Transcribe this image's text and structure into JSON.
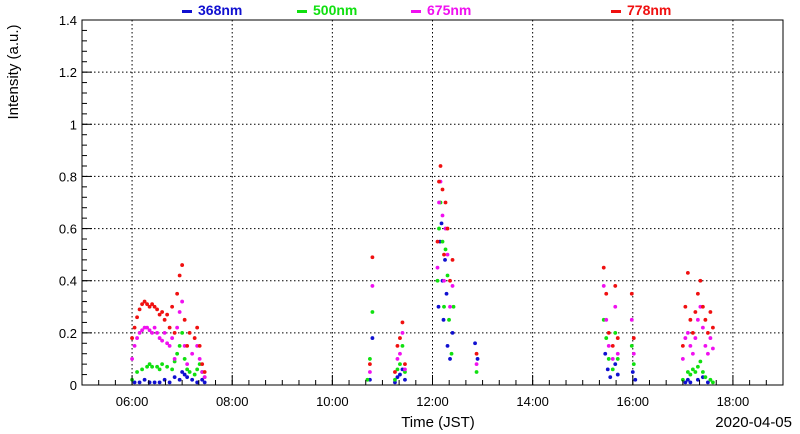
{
  "chart_data": {
    "type": "scatter",
    "title": "",
    "xlabel": "Time (JST)",
    "ylabel": "Intensity (a.u.)",
    "date_label": "2020-04-05",
    "xlim": [
      5.0,
      19.0
    ],
    "ylim": [
      0,
      1.4
    ],
    "x_ticks": [
      6,
      8,
      10,
      12,
      14,
      16,
      18
    ],
    "x_tick_labels": [
      "06:00",
      "08:00",
      "10:00",
      "12:00",
      "14:00",
      "16:00",
      "18:00"
    ],
    "y_ticks": [
      0,
      0.2,
      0.4,
      0.6,
      0.8,
      1,
      1.2,
      1.4
    ],
    "y_tick_labels": [
      "0",
      "0.2",
      "0.4",
      "0.6",
      "0.8",
      "1",
      "1.2",
      "1.4"
    ],
    "grid": true,
    "legend_position": "top",
    "series": [
      {
        "name": "368nm",
        "color": "#1010d0",
        "points": [
          [
            6.05,
            0.01
          ],
          [
            6.15,
            0.01
          ],
          [
            6.25,
            0.02
          ],
          [
            6.35,
            0.01
          ],
          [
            6.45,
            0.01
          ],
          [
            6.55,
            0.01
          ],
          [
            6.65,
            0.02
          ],
          [
            6.75,
            0.01
          ],
          [
            6.85,
            0.03
          ],
          [
            6.95,
            0.02
          ],
          [
            7.0,
            0.05
          ],
          [
            7.05,
            0.04
          ],
          [
            7.1,
            0.03
          ],
          [
            7.2,
            0.02
          ],
          [
            7.3,
            0.01
          ],
          [
            7.4,
            0.02
          ],
          [
            7.45,
            0.01
          ],
          [
            10.75,
            0.02
          ],
          [
            10.8,
            0.18
          ],
          [
            11.25,
            0.01
          ],
          [
            11.3,
            0.03
          ],
          [
            11.35,
            0.04
          ],
          [
            11.4,
            0.06
          ],
          [
            11.45,
            0.02
          ],
          [
            12.12,
            0.3
          ],
          [
            12.15,
            0.55
          ],
          [
            12.18,
            0.62
          ],
          [
            12.2,
            0.4
          ],
          [
            12.22,
            0.25
          ],
          [
            12.25,
            0.48
          ],
          [
            12.28,
            0.35
          ],
          [
            12.3,
            0.15
          ],
          [
            12.35,
            0.1
          ],
          [
            12.4,
            0.2
          ],
          [
            12.85,
            0.16
          ],
          [
            12.9,
            0.1
          ],
          [
            15.45,
            0.12
          ],
          [
            15.5,
            0.06
          ],
          [
            15.55,
            0.03
          ],
          [
            15.65,
            0.08
          ],
          [
            15.7,
            0.04
          ],
          [
            16.0,
            0.05
          ],
          [
            16.05,
            0.02
          ],
          [
            17.05,
            0.01
          ],
          [
            17.1,
            0.02
          ],
          [
            17.15,
            0.01
          ],
          [
            17.3,
            0.02
          ],
          [
            17.4,
            0.03
          ],
          [
            17.5,
            0.01
          ]
        ]
      },
      {
        "name": "500nm",
        "color": "#10e010",
        "points": [
          [
            6.0,
            0.02
          ],
          [
            6.1,
            0.05
          ],
          [
            6.2,
            0.06
          ],
          [
            6.3,
            0.07
          ],
          [
            6.35,
            0.08
          ],
          [
            6.4,
            0.07
          ],
          [
            6.5,
            0.07
          ],
          [
            6.55,
            0.06
          ],
          [
            6.6,
            0.08
          ],
          [
            6.7,
            0.07
          ],
          [
            6.8,
            0.06
          ],
          [
            6.85,
            0.09
          ],
          [
            6.9,
            0.12
          ],
          [
            6.95,
            0.15
          ],
          [
            7.0,
            0.2
          ],
          [
            7.05,
            0.1
          ],
          [
            7.1,
            0.06
          ],
          [
            7.15,
            0.05
          ],
          [
            7.25,
            0.04
          ],
          [
            7.3,
            0.06
          ],
          [
            7.35,
            0.08
          ],
          [
            7.4,
            0.05
          ],
          [
            7.45,
            0.03
          ],
          [
            10.7,
            0.02
          ],
          [
            10.75,
            0.1
          ],
          [
            10.8,
            0.28
          ],
          [
            11.25,
            0.02
          ],
          [
            11.3,
            0.06
          ],
          [
            11.35,
            0.08
          ],
          [
            11.4,
            0.15
          ],
          [
            11.45,
            0.05
          ],
          [
            12.1,
            0.4
          ],
          [
            12.13,
            0.6
          ],
          [
            12.16,
            0.7
          ],
          [
            12.2,
            0.55
          ],
          [
            12.23,
            0.3
          ],
          [
            12.26,
            0.52
          ],
          [
            12.3,
            0.42
          ],
          [
            12.33,
            0.25
          ],
          [
            12.38,
            0.12
          ],
          [
            12.42,
            0.3
          ],
          [
            12.88,
            0.05
          ],
          [
            15.42,
            0.25
          ],
          [
            15.47,
            0.18
          ],
          [
            15.52,
            0.1
          ],
          [
            15.6,
            0.06
          ],
          [
            15.65,
            0.2
          ],
          [
            15.7,
            0.1
          ],
          [
            15.98,
            0.15
          ],
          [
            16.02,
            0.08
          ],
          [
            17.0,
            0.02
          ],
          [
            17.1,
            0.05
          ],
          [
            17.15,
            0.04
          ],
          [
            17.2,
            0.06
          ],
          [
            17.25,
            0.05
          ],
          [
            17.3,
            0.07
          ],
          [
            17.35,
            0.09
          ],
          [
            17.4,
            0.05
          ],
          [
            17.45,
            0.03
          ],
          [
            17.55,
            0.02
          ],
          [
            17.6,
            0.01
          ]
        ]
      },
      {
        "name": "675nm",
        "color": "#f010f0",
        "points": [
          [
            6.0,
            0.1
          ],
          [
            6.05,
            0.15
          ],
          [
            6.1,
            0.18
          ],
          [
            6.15,
            0.2
          ],
          [
            6.2,
            0.21
          ],
          [
            6.25,
            0.22
          ],
          [
            6.3,
            0.22
          ],
          [
            6.35,
            0.21
          ],
          [
            6.4,
            0.2
          ],
          [
            6.45,
            0.22
          ],
          [
            6.5,
            0.2
          ],
          [
            6.55,
            0.18
          ],
          [
            6.6,
            0.17
          ],
          [
            6.65,
            0.2
          ],
          [
            6.7,
            0.16
          ],
          [
            6.75,
            0.15
          ],
          [
            6.8,
            0.18
          ],
          [
            6.85,
            0.1
          ],
          [
            6.9,
            0.22
          ],
          [
            6.95,
            0.28
          ],
          [
            7.0,
            0.32
          ],
          [
            7.05,
            0.15
          ],
          [
            7.1,
            0.08
          ],
          [
            7.2,
            0.12
          ],
          [
            7.3,
            0.15
          ],
          [
            7.35,
            0.1
          ],
          [
            7.4,
            0.05
          ],
          [
            7.45,
            0.03
          ],
          [
            10.75,
            0.05
          ],
          [
            10.8,
            0.38
          ],
          [
            11.3,
            0.1
          ],
          [
            11.35,
            0.12
          ],
          [
            11.4,
            0.2
          ],
          [
            11.45,
            0.06
          ],
          [
            12.1,
            0.45
          ],
          [
            12.13,
            0.7
          ],
          [
            12.16,
            0.78
          ],
          [
            12.2,
            0.65
          ],
          [
            12.23,
            0.4
          ],
          [
            12.26,
            0.6
          ],
          [
            12.3,
            0.5
          ],
          [
            12.35,
            0.3
          ],
          [
            12.4,
            0.38
          ],
          [
            12.88,
            0.08
          ],
          [
            15.42,
            0.38
          ],
          [
            15.47,
            0.25
          ],
          [
            15.52,
            0.15
          ],
          [
            15.6,
            0.1
          ],
          [
            15.65,
            0.3
          ],
          [
            15.7,
            0.12
          ],
          [
            15.98,
            0.25
          ],
          [
            16.02,
            0.12
          ],
          [
            17.0,
            0.1
          ],
          [
            17.05,
            0.18
          ],
          [
            17.1,
            0.2
          ],
          [
            17.15,
            0.15
          ],
          [
            17.2,
            0.12
          ],
          [
            17.25,
            0.18
          ],
          [
            17.3,
            0.25
          ],
          [
            17.35,
            0.3
          ],
          [
            17.4,
            0.22
          ],
          [
            17.45,
            0.15
          ],
          [
            17.5,
            0.12
          ],
          [
            17.55,
            0.18
          ],
          [
            17.6,
            0.14
          ]
        ]
      },
      {
        "name": "778nm",
        "color": "#f01010",
        "points": [
          [
            6.0,
            0.18
          ],
          [
            6.05,
            0.22
          ],
          [
            6.1,
            0.26
          ],
          [
            6.15,
            0.29
          ],
          [
            6.2,
            0.31
          ],
          [
            6.25,
            0.32
          ],
          [
            6.3,
            0.31
          ],
          [
            6.35,
            0.3
          ],
          [
            6.4,
            0.31
          ],
          [
            6.45,
            0.3
          ],
          [
            6.5,
            0.29
          ],
          [
            6.55,
            0.27
          ],
          [
            6.6,
            0.28
          ],
          [
            6.65,
            0.25
          ],
          [
            6.7,
            0.27
          ],
          [
            6.75,
            0.22
          ],
          [
            6.8,
            0.3
          ],
          [
            6.85,
            0.2
          ],
          [
            6.9,
            0.35
          ],
          [
            6.95,
            0.42
          ],
          [
            7.0,
            0.46
          ],
          [
            7.05,
            0.25
          ],
          [
            7.1,
            0.15
          ],
          [
            7.15,
            0.2
          ],
          [
            7.25,
            0.18
          ],
          [
            7.3,
            0.22
          ],
          [
            7.35,
            0.15
          ],
          [
            7.4,
            0.08
          ],
          [
            7.45,
            0.05
          ],
          [
            10.75,
            0.08
          ],
          [
            10.8,
            0.49
          ],
          [
            11.25,
            0.05
          ],
          [
            11.3,
            0.15
          ],
          [
            11.35,
            0.18
          ],
          [
            11.4,
            0.24
          ],
          [
            11.45,
            0.08
          ],
          [
            12.1,
            0.55
          ],
          [
            12.13,
            0.78
          ],
          [
            12.16,
            0.84
          ],
          [
            12.2,
            0.75
          ],
          [
            12.23,
            0.5
          ],
          [
            12.26,
            0.7
          ],
          [
            12.3,
            0.6
          ],
          [
            12.35,
            0.4
          ],
          [
            12.4,
            0.48
          ],
          [
            12.88,
            0.12
          ],
          [
            15.42,
            0.45
          ],
          [
            15.47,
            0.35
          ],
          [
            15.52,
            0.2
          ],
          [
            15.6,
            0.15
          ],
          [
            15.65,
            0.38
          ],
          [
            15.7,
            0.18
          ],
          [
            15.98,
            0.35
          ],
          [
            16.02,
            0.18
          ],
          [
            17.0,
            0.15
          ],
          [
            17.05,
            0.3
          ],
          [
            17.1,
            0.43
          ],
          [
            17.15,
            0.25
          ],
          [
            17.2,
            0.2
          ],
          [
            17.25,
            0.28
          ],
          [
            17.3,
            0.35
          ],
          [
            17.35,
            0.4
          ],
          [
            17.4,
            0.3
          ],
          [
            17.45,
            0.25
          ],
          [
            17.5,
            0.2
          ],
          [
            17.55,
            0.28
          ],
          [
            17.6,
            0.22
          ]
        ]
      }
    ]
  }
}
